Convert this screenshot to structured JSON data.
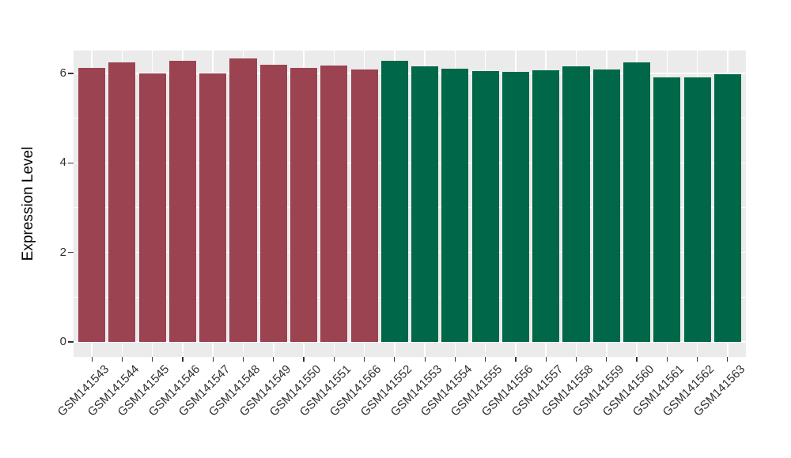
{
  "figure": {
    "background": "#FFFFFF",
    "panel_background": "#EBEBEB",
    "grid_color": "#FFFFFF",
    "tick_mark_color": "#333333",
    "tick_label_color": "#303030",
    "axis_title_color": "#000000"
  },
  "chart_data": {
    "type": "bar",
    "title": "",
    "xlabel": "",
    "ylabel": "Expression Level",
    "categories": [
      "GSM141543",
      "GSM141544",
      "GSM141545",
      "GSM141546",
      "GSM141547",
      "GSM141548",
      "GSM141549",
      "GSM141550",
      "GSM141551",
      "GSM141566",
      "GSM141552",
      "GSM141553",
      "GSM141554",
      "GSM141555",
      "GSM141556",
      "GSM141557",
      "GSM141558",
      "GSM141559",
      "GSM141560",
      "GSM141561",
      "GSM141562",
      "GSM141563"
    ],
    "values": [
      6.13,
      6.24,
      6.0,
      6.29,
      6.0,
      6.33,
      6.19,
      6.13,
      6.18,
      6.09,
      6.28,
      6.16,
      6.11,
      6.06,
      6.03,
      6.07,
      6.16,
      6.09,
      6.24,
      5.91,
      5.91,
      5.99
    ],
    "colors": [
      "#9B4350",
      "#9B4350",
      "#9B4350",
      "#9B4350",
      "#9B4350",
      "#9B4350",
      "#9B4350",
      "#9B4350",
      "#9B4350",
      "#9B4350",
      "#006849",
      "#006849",
      "#006849",
      "#006849",
      "#006849",
      "#006849",
      "#006849",
      "#006849",
      "#006849",
      "#006849",
      "#006849",
      "#006849"
    ],
    "group_colors": {
      "left_group_hex": "#9B4350",
      "right_group_hex": "#006849"
    },
    "yticks": [
      0,
      2,
      4,
      6
    ],
    "yticks_minor": [
      1,
      3,
      5
    ],
    "ylim": [
      0,
      6.5
    ],
    "grid": true,
    "legend": false,
    "x_tick_rotation": -45
  }
}
